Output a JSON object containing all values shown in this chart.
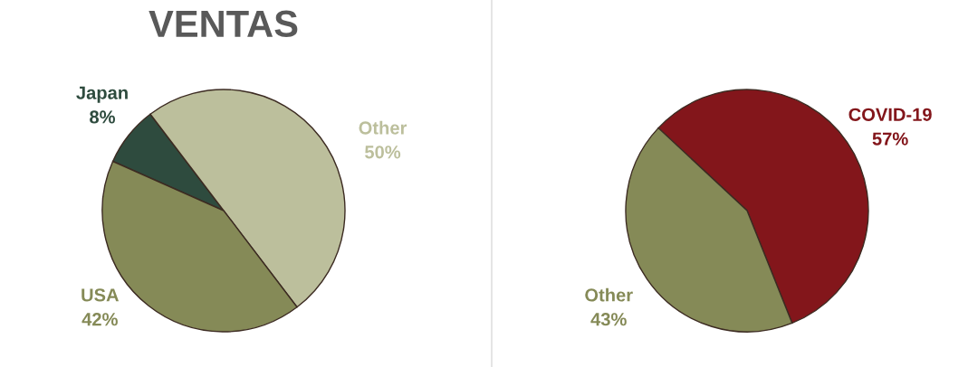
{
  "chart_data": [
    {
      "type": "pie",
      "title": "VENTAS",
      "categories": [
        "Japan",
        "Other",
        "USA"
      ],
      "values": [
        8,
        50,
        42
      ],
      "value_labels": [
        "8%",
        "50%",
        "42%"
      ],
      "colors": [
        "#2e4b3e",
        "#bcbf9c",
        "#858a57"
      ]
    },
    {
      "type": "pie",
      "categories": [
        "COVID-19",
        "Other"
      ],
      "values": [
        57,
        43
      ],
      "value_labels": [
        "57%",
        "43%"
      ],
      "colors": [
        "#83161b",
        "#858a57"
      ]
    }
  ]
}
